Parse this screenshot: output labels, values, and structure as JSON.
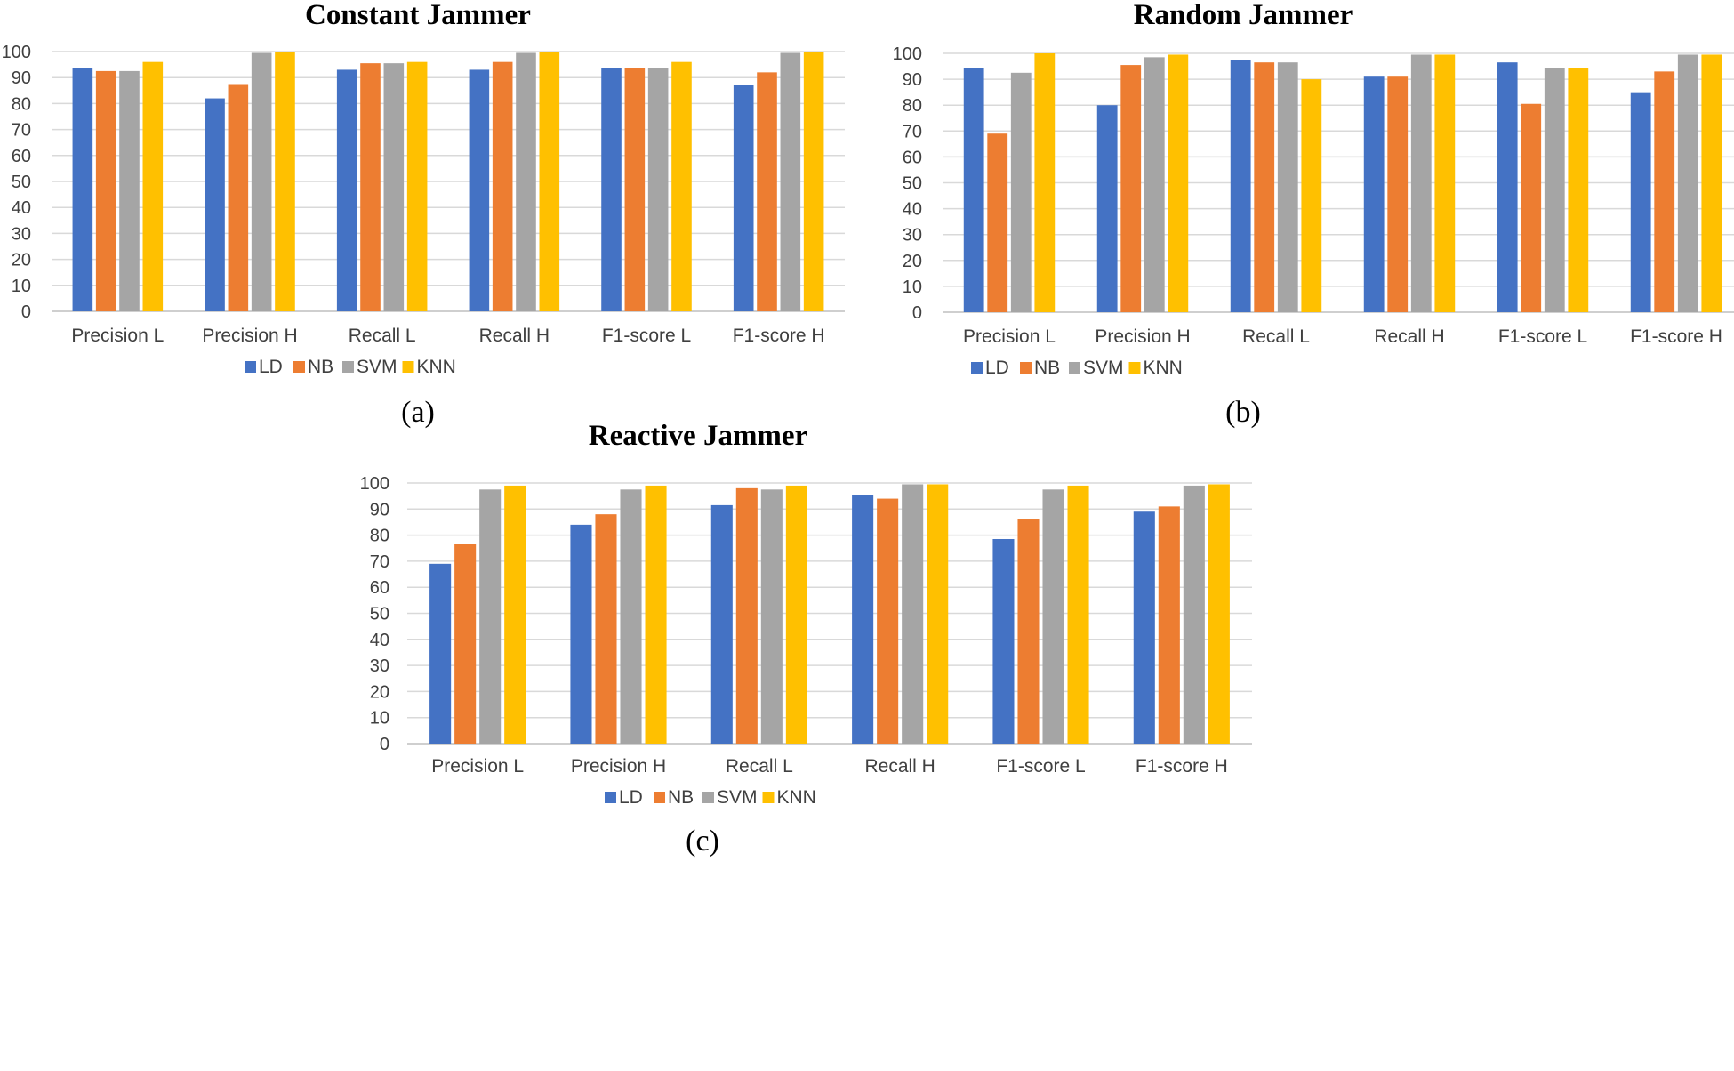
{
  "colors": {
    "LD": "#4472c4",
    "NB": "#ed7d31",
    "SVM": "#a5a5a5",
    "KNN": "#ffc000"
  },
  "chart_data": [
    {
      "type": "bar",
      "panel_label": "(a)",
      "title": "Constant Jammer",
      "categories": [
        "Precision L",
        "Precision H",
        "Recall L",
        "Recall H",
        "F1-score  L",
        "F1-score H"
      ],
      "ylim": [
        0,
        100
      ],
      "yticks": [
        0,
        10,
        20,
        30,
        40,
        50,
        60,
        70,
        80,
        90,
        100
      ],
      "grid": true,
      "legend": "bottom",
      "series": [
        {
          "name": "LD",
          "values": [
            93.5,
            82,
            93,
            93,
            93.5,
            87
          ]
        },
        {
          "name": "NB",
          "values": [
            92.5,
            87.5,
            95.5,
            96,
            93.5,
            92
          ]
        },
        {
          "name": "SVM",
          "values": [
            92.5,
            99.5,
            95.5,
            99.5,
            93.5,
            99.5
          ]
        },
        {
          "name": "KNN",
          "values": [
            96,
            100,
            96,
            100,
            96,
            100
          ]
        }
      ]
    },
    {
      "type": "bar",
      "panel_label": "(b)",
      "title": "Random Jammer",
      "categories": [
        "Precision L",
        "Precision H",
        "Recall L",
        "Recall H",
        "F1-score  L",
        "F1-score H"
      ],
      "ylim": [
        0,
        100
      ],
      "yticks": [
        0,
        10,
        20,
        30,
        40,
        50,
        60,
        70,
        80,
        90,
        100
      ],
      "grid": true,
      "legend": "bottom",
      "series": [
        {
          "name": "LD",
          "values": [
            94.5,
            80,
            97.5,
            91,
            96.5,
            85
          ]
        },
        {
          "name": "NB",
          "values": [
            69,
            95.5,
            96.5,
            91,
            80.5,
            93
          ]
        },
        {
          "name": "SVM",
          "values": [
            92.5,
            98.5,
            96.5,
            99.5,
            94.5,
            99.5
          ]
        },
        {
          "name": "KNN",
          "values": [
            100,
            99.5,
            90,
            99.5,
            94.5,
            99.5
          ]
        }
      ]
    },
    {
      "type": "bar",
      "panel_label": "(c)",
      "title": "Reactive Jammer",
      "categories": [
        "Precision L",
        "Precision H",
        "Recall L",
        "Recall H",
        "F1-score  L",
        "F1-score H"
      ],
      "ylim": [
        0,
        100
      ],
      "yticks": [
        0,
        10,
        20,
        30,
        40,
        50,
        60,
        70,
        80,
        90,
        100
      ],
      "grid": true,
      "legend": "bottom",
      "series": [
        {
          "name": "LD",
          "values": [
            69,
            84,
            91.5,
            95.5,
            78.5,
            89
          ]
        },
        {
          "name": "NB",
          "values": [
            76.5,
            88,
            98,
            94,
            86,
            91
          ]
        },
        {
          "name": "SVM",
          "values": [
            97.5,
            97.5,
            97.5,
            99.5,
            97.5,
            99
          ]
        },
        {
          "name": "KNN",
          "values": [
            99,
            99,
            99,
            99.5,
            99,
            99.5
          ]
        }
      ]
    }
  ]
}
